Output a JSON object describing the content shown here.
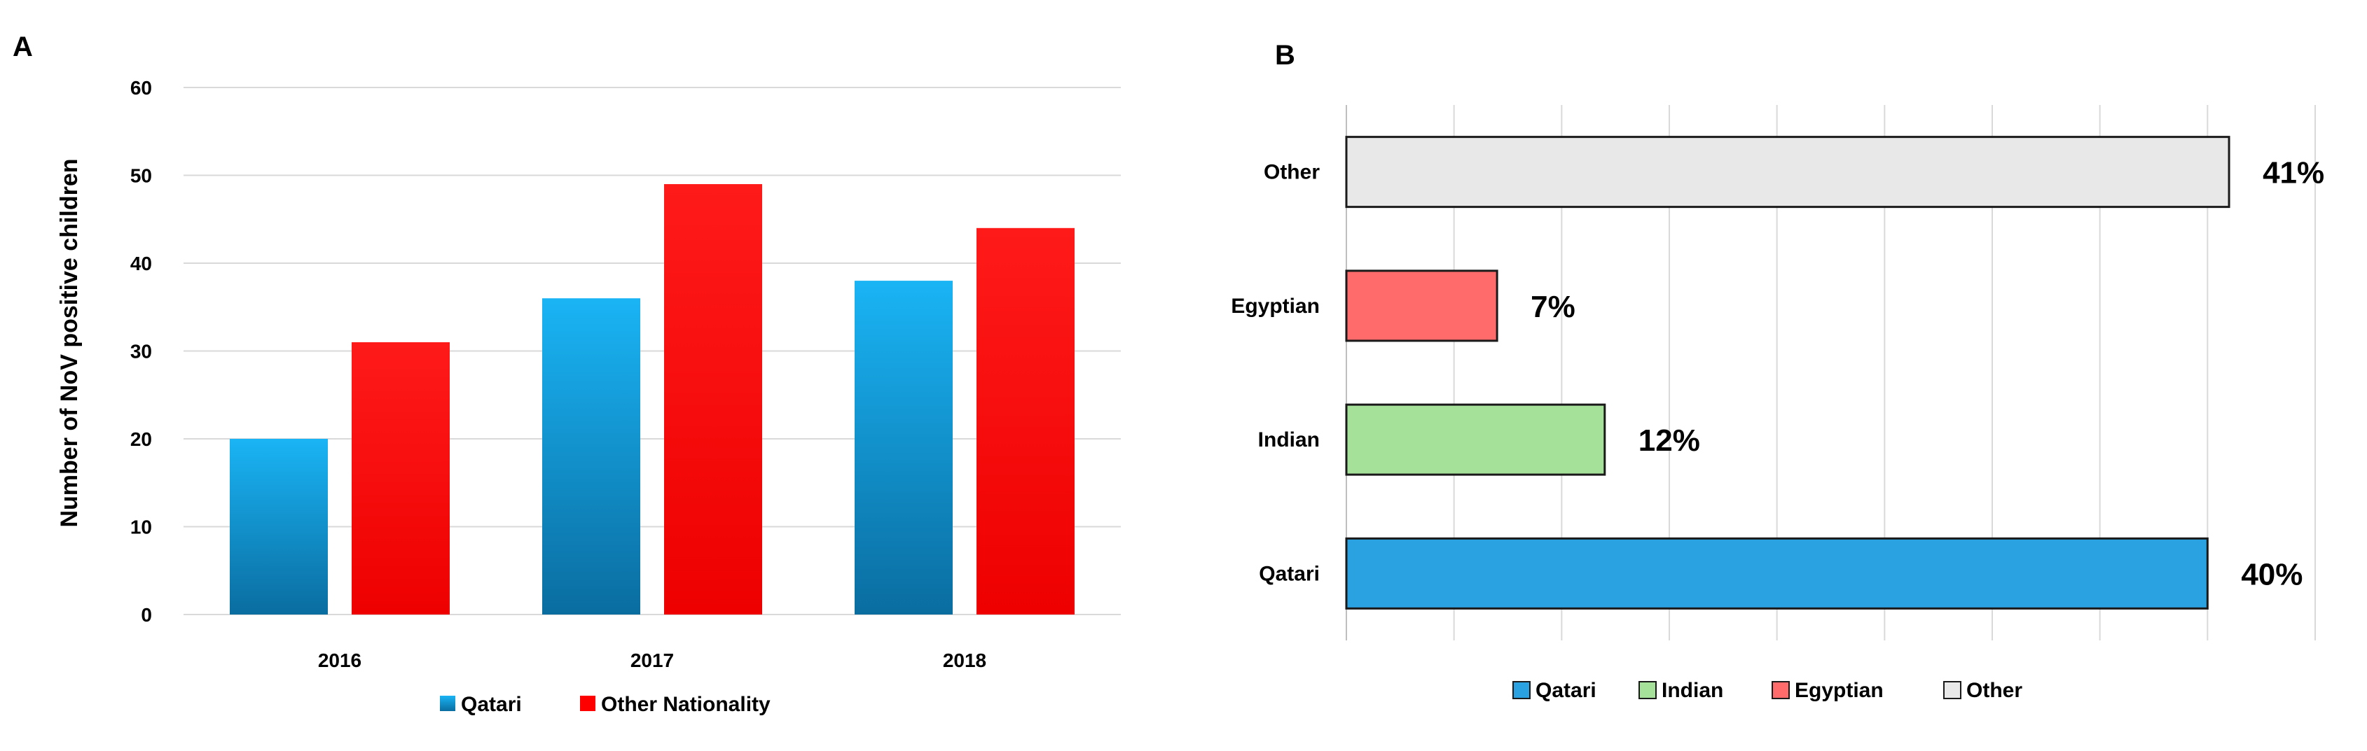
{
  "chart_data": [
    {
      "panel": "A",
      "type": "bar",
      "categories": [
        "2016",
        "2017",
        "2018"
      ],
      "series": [
        {
          "name": "Qatari",
          "values": [
            20,
            36,
            38
          ],
          "color": "#1aa3e8"
        },
        {
          "name": "Other Nationality",
          "values": [
            31,
            49,
            44
          ],
          "color": "#ff0000"
        }
      ],
      "ylabel": "Number of NoV positive children",
      "ylim": [
        0,
        60
      ],
      "yticks": [
        0,
        10,
        20,
        30,
        40,
        50,
        60
      ],
      "grid": true,
      "legend_position": "bottom"
    },
    {
      "panel": "B",
      "type": "bar",
      "orientation": "horizontal",
      "categories": [
        "Qatari",
        "Indian",
        "Egyptian",
        "Other"
      ],
      "values": [
        40,
        12,
        7,
        41
      ],
      "value_labels": [
        "40%",
        "12%",
        "7%",
        "41%"
      ],
      "colors": [
        "#2aa1e0",
        "#a6e19a",
        "#ff6b6b",
        "#e8e8e8"
      ],
      "xlim": [
        0,
        45
      ],
      "grid": true,
      "legend_position": "bottom"
    }
  ]
}
